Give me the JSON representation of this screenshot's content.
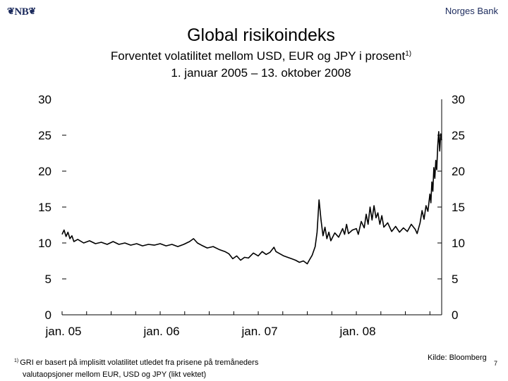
{
  "header": {
    "logo_text": "NB",
    "logo_symbol": "❦",
    "organization": "Norges Bank"
  },
  "slide": {
    "title": "Global risikoindeks",
    "subtitle_line1": "Forventet volatilitet mellom USD, EUR og JPY i prosent",
    "subtitle_note_marker": "1)",
    "subtitle_line2": "1. januar 2005 – 13. oktober 2008"
  },
  "chart_data": {
    "type": "line",
    "title": "Global risikoindeks",
    "xlabel": "",
    "ylabel": "",
    "ylim": [
      0,
      30
    ],
    "xlim_years": [
      2005.0,
      2008.87
    ],
    "x_ticks": [
      {
        "label": "jan. 05",
        "year": 2005.0
      },
      {
        "label": "jan. 06",
        "year": 2006.0
      },
      {
        "label": "jan. 07",
        "year": 2007.0
      },
      {
        "label": "jan. 08",
        "year": 2008.0
      }
    ],
    "y_ticks_left": [
      "0",
      "5",
      "10",
      "15",
      "20",
      "25",
      "30"
    ],
    "y_ticks_right": [
      "0",
      "5",
      "10",
      "15",
      "20",
      "25",
      "30"
    ],
    "series": [
      {
        "name": "Global risikoindeks",
        "color": "#000000",
        "points": [
          [
            2005.0,
            11.2
          ],
          [
            2005.02,
            11.8
          ],
          [
            2005.04,
            10.9
          ],
          [
            2005.06,
            11.5
          ],
          [
            2005.08,
            10.6
          ],
          [
            2005.1,
            11.0
          ],
          [
            2005.12,
            10.2
          ],
          [
            2005.16,
            10.5
          ],
          [
            2005.22,
            10.0
          ],
          [
            2005.28,
            10.3
          ],
          [
            2005.34,
            9.9
          ],
          [
            2005.4,
            10.1
          ],
          [
            2005.46,
            9.8
          ],
          [
            2005.52,
            10.2
          ],
          [
            2005.58,
            9.8
          ],
          [
            2005.64,
            10.0
          ],
          [
            2005.7,
            9.7
          ],
          [
            2005.76,
            9.9
          ],
          [
            2005.82,
            9.6
          ],
          [
            2005.88,
            9.8
          ],
          [
            2005.94,
            9.7
          ],
          [
            2006.0,
            9.9
          ],
          [
            2006.06,
            9.6
          ],
          [
            2006.12,
            9.8
          ],
          [
            2006.18,
            9.5
          ],
          [
            2006.24,
            9.8
          ],
          [
            2006.3,
            10.2
          ],
          [
            2006.34,
            10.6
          ],
          [
            2006.38,
            10.0
          ],
          [
            2006.42,
            9.7
          ],
          [
            2006.48,
            9.3
          ],
          [
            2006.54,
            9.5
          ],
          [
            2006.6,
            9.1
          ],
          [
            2006.66,
            8.8
          ],
          [
            2006.7,
            8.5
          ],
          [
            2006.74,
            7.8
          ],
          [
            2006.78,
            8.2
          ],
          [
            2006.82,
            7.6
          ],
          [
            2006.86,
            8.0
          ],
          [
            2006.9,
            7.9
          ],
          [
            2006.95,
            8.6
          ],
          [
            2007.0,
            8.2
          ],
          [
            2007.04,
            8.8
          ],
          [
            2007.08,
            8.4
          ],
          [
            2007.12,
            8.7
          ],
          [
            2007.16,
            9.4
          ],
          [
            2007.18,
            8.8
          ],
          [
            2007.22,
            8.5
          ],
          [
            2007.26,
            8.2
          ],
          [
            2007.3,
            8.0
          ],
          [
            2007.34,
            7.8
          ],
          [
            2007.38,
            7.6
          ],
          [
            2007.42,
            7.3
          ],
          [
            2007.46,
            7.5
          ],
          [
            2007.5,
            7.1
          ],
          [
            2007.52,
            7.6
          ],
          [
            2007.55,
            8.3
          ],
          [
            2007.58,
            9.5
          ],
          [
            2007.6,
            11.5
          ],
          [
            2007.62,
            16.0
          ],
          [
            2007.64,
            13.2
          ],
          [
            2007.66,
            11.0
          ],
          [
            2007.68,
            12.2
          ],
          [
            2007.7,
            10.6
          ],
          [
            2007.72,
            11.5
          ],
          [
            2007.74,
            10.3
          ],
          [
            2007.78,
            11.4
          ],
          [
            2007.82,
            10.8
          ],
          [
            2007.86,
            12.0
          ],
          [
            2007.88,
            11.2
          ],
          [
            2007.9,
            12.6
          ],
          [
            2007.92,
            11.3
          ],
          [
            2007.96,
            11.8
          ],
          [
            2008.0,
            12.0
          ],
          [
            2008.02,
            11.2
          ],
          [
            2008.05,
            13.0
          ],
          [
            2008.08,
            12.1
          ],
          [
            2008.1,
            14.0
          ],
          [
            2008.12,
            12.6
          ],
          [
            2008.14,
            15.0
          ],
          [
            2008.16,
            13.2
          ],
          [
            2008.18,
            15.2
          ],
          [
            2008.2,
            13.5
          ],
          [
            2008.22,
            14.2
          ],
          [
            2008.24,
            12.6
          ],
          [
            2008.26,
            13.8
          ],
          [
            2008.28,
            12.2
          ],
          [
            2008.32,
            12.8
          ],
          [
            2008.36,
            11.6
          ],
          [
            2008.4,
            12.3
          ],
          [
            2008.44,
            11.5
          ],
          [
            2008.48,
            12.1
          ],
          [
            2008.52,
            11.6
          ],
          [
            2008.56,
            12.6
          ],
          [
            2008.6,
            11.9
          ],
          [
            2008.62,
            11.3
          ],
          [
            2008.65,
            12.8
          ],
          [
            2008.67,
            14.5
          ],
          [
            2008.69,
            13.3
          ],
          [
            2008.71,
            15.2
          ],
          [
            2008.73,
            14.4
          ],
          [
            2008.75,
            16.8
          ],
          [
            2008.76,
            15.6
          ],
          [
            2008.77,
            18.5
          ],
          [
            2008.78,
            17.2
          ],
          [
            2008.79,
            20.5
          ],
          [
            2008.8,
            19.0
          ],
          [
            2008.81,
            21.5
          ],
          [
            2008.82,
            20.2
          ],
          [
            2008.83,
            23.5
          ],
          [
            2008.84,
            25.5
          ],
          [
            2008.85,
            22.8
          ],
          [
            2008.86,
            25.2
          ],
          [
            2008.87,
            24.3
          ]
        ]
      }
    ]
  },
  "footer": {
    "footnote_marker": "1)",
    "footnote_line1": "GRI er basert på implisitt volatilitet utledet fra prisene på tremåneders",
    "footnote_line2": "valutaopsjoner mellom EUR, USD og JPY (likt vektet)",
    "source": "Kilde: Bloomberg",
    "page_number": "7"
  }
}
